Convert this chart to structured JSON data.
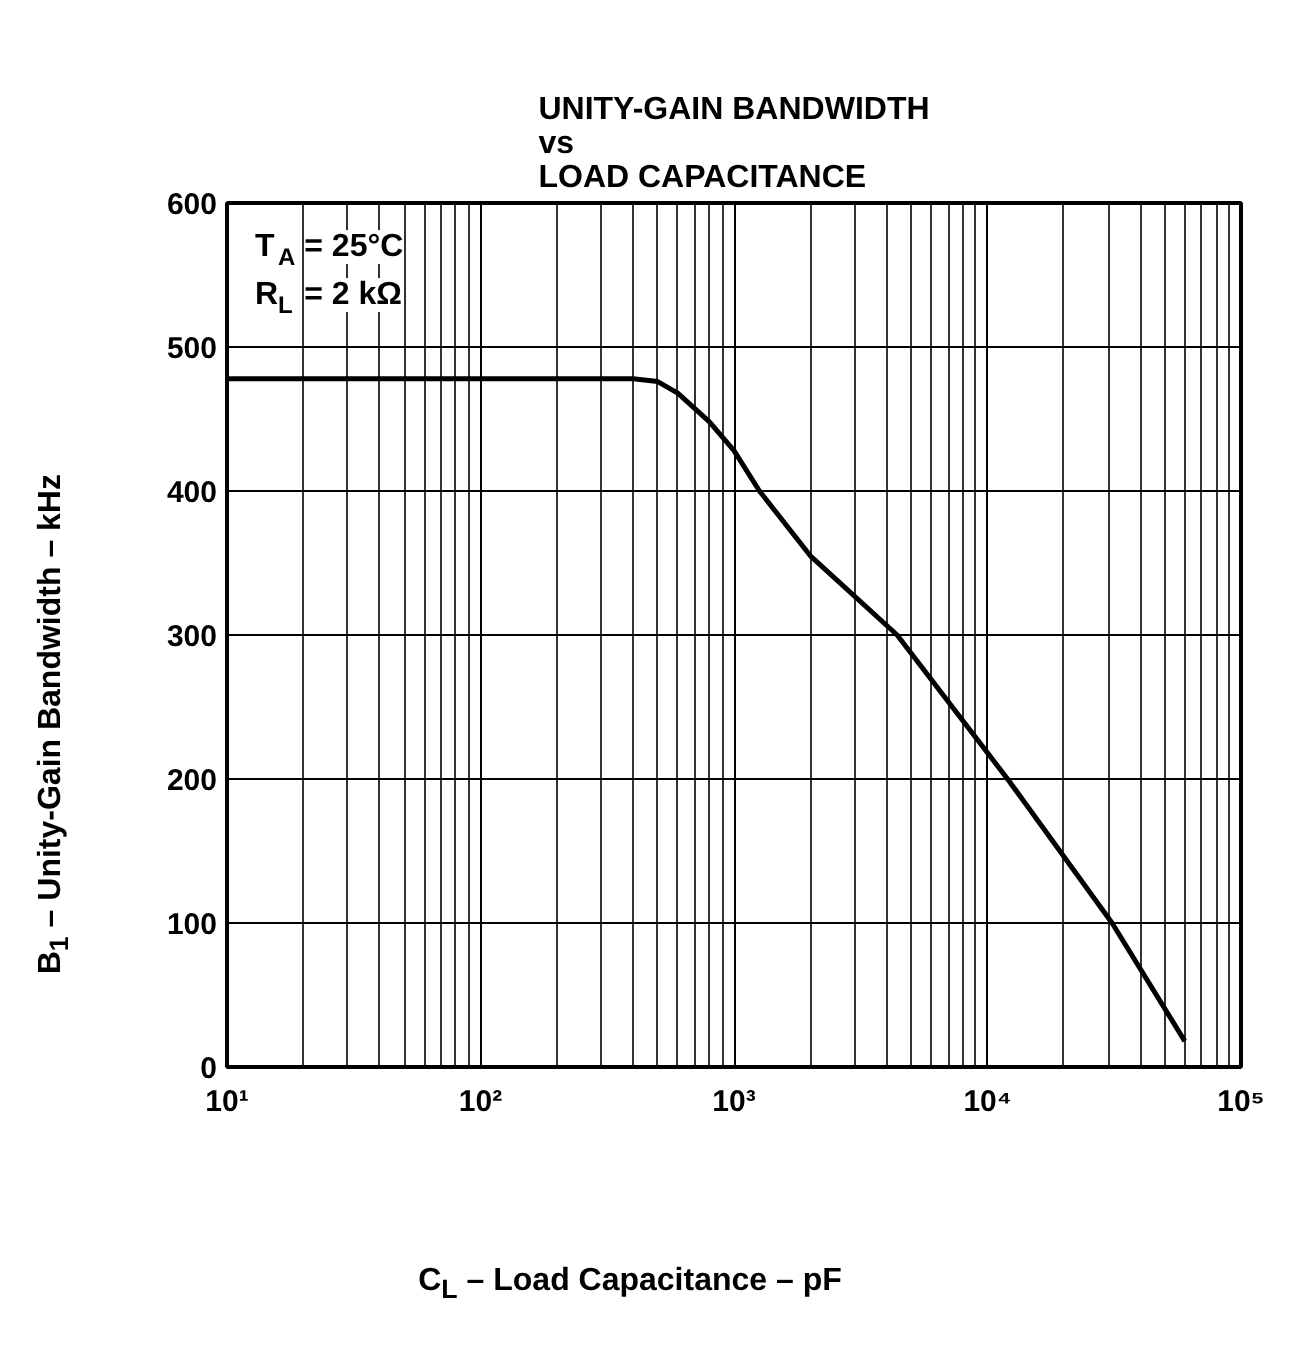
{
  "chart_data": {
    "type": "line",
    "title": "UNITY-GAIN BANDWIDTH\nvs\nLOAD CAPACITANCE",
    "xlabel": "C$_{L}$ – Load Capacitance – pF",
    "ylabel": "B$_{1}$  – Unity-Gain Bandwidth – kHz",
    "log": "x",
    "x": [
      10,
      100,
      400,
      500,
      600,
      800,
      1000,
      1260,
      2000,
      4400,
      12000,
      31000,
      60000
    ],
    "series": [
      {
        "color": "#000000",
        "values": [
          478,
          478,
          478,
          476,
          468,
          448,
          428,
          400,
          355,
          300,
          200,
          100,
          18
        ]
      }
    ],
    "xlim": [
      10,
      100000
    ],
    "xticks": [
      {
        "value": 10,
        "label": "10¹"
      },
      {
        "value": 100,
        "label": "10²"
      },
      {
        "value": 1000,
        "label": "10³"
      },
      {
        "value": 10000,
        "label": "10⁴"
      },
      {
        "value": 100000,
        "label": "10⁵"
      }
    ],
    "ylim": [
      0,
      600
    ],
    "yticks": [
      0,
      100,
      200,
      300,
      400,
      500,
      600
    ],
    "grid": true,
    "marker": "none",
    "line_style": "solid",
    "annotations": [
      "T$_{A}$ = 25°C",
      "R$_{L}$ = 2 kΩ"
    ]
  }
}
